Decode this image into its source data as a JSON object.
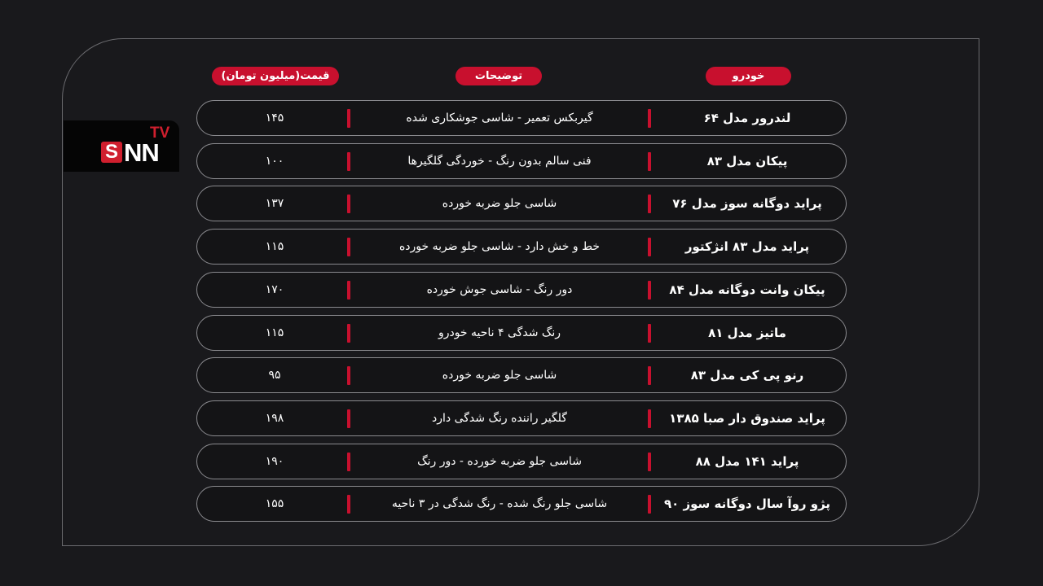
{
  "logo": {
    "text": "SNN TV",
    "s": "S",
    "nn": "NN",
    "tv": "TV"
  },
  "headers": {
    "car": "خودرو",
    "description": "توضیحات",
    "price": "قیمت(میلیون تومان)"
  },
  "accent_color": "#c8102e",
  "rows": [
    {
      "car": "لندرور مدل ۶۴",
      "description": "گیربکس تعمیر - شاسی جوشکاری شده",
      "price": "۱۴۵"
    },
    {
      "car": "پیکان مدل ۸۳",
      "description": "فنی سالم بدون رنگ - خوردگی گلگیرها",
      "price": "۱۰۰"
    },
    {
      "car": "پراید دوگانه سوز مدل ۷۶",
      "description": "شاسی جلو ضربه خورده",
      "price": "۱۳۷"
    },
    {
      "car": "پراید مدل ۸۳ انژکتور",
      "description": "خط و خش دارد - شاسی جلو ضربه خورده",
      "price": "۱۱۵"
    },
    {
      "car": "پیکان وانت دوگانه مدل ۸۴",
      "description": "دور رنگ - شاسی جوش خورده",
      "price": "۱۷۰"
    },
    {
      "car": "ماتیز مدل ۸۱",
      "description": "رنگ شدگی ۴ ناحیه خودرو",
      "price": "۱۱۵"
    },
    {
      "car": "رنو پی کی مدل ۸۳",
      "description": "شاسی جلو ضربه خورده",
      "price": "۹۵"
    },
    {
      "car": "پراید صندوق دار صبا ۱۳۸۵",
      "description": "گلگیر راننده رنگ شدگی دارد",
      "price": "۱۹۸"
    },
    {
      "car": "پراید ۱۴۱ مدل ۸۸",
      "description": "شاسی جلو ضربه خورده - دور رنگ",
      "price": "۱۹۰"
    },
    {
      "car": "پژو روآ سال دوگانه سوز ۹۰",
      "description": "شاسی جلو رنگ شده - رنگ شدگی در ۳ ناحیه",
      "price": "۱۵۵"
    }
  ]
}
